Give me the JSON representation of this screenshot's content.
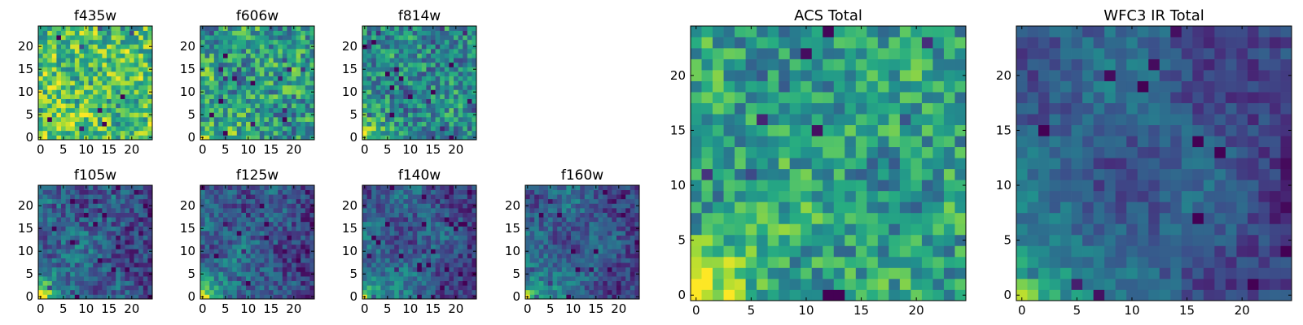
{
  "chart_data": [
    {
      "type": "heatmap",
      "title": "f435w",
      "level": "high",
      "noise": 0.55,
      "glow": 0.35,
      "seed": 11,
      "xticks": [
        "0",
        "5",
        "10",
        "15",
        "20"
      ],
      "yticks": [
        "0",
        "5",
        "10",
        "15",
        "20"
      ],
      "xlim": [
        -0.5,
        24.5
      ],
      "ylim": [
        -0.5,
        24.5
      ],
      "colormap": "viridis"
    },
    {
      "type": "heatmap",
      "title": "f606w",
      "level": "mid-high",
      "noise": 0.55,
      "glow": 0.6,
      "seed": 23,
      "xticks": [
        "0",
        "5",
        "10",
        "15",
        "20"
      ],
      "yticks": [
        "0",
        "5",
        "10",
        "15",
        "20"
      ],
      "xlim": [
        -0.5,
        24.5
      ],
      "ylim": [
        -0.5,
        24.5
      ],
      "colormap": "viridis"
    },
    {
      "type": "heatmap",
      "title": "f814w",
      "level": "mid",
      "noise": 0.5,
      "glow": 0.8,
      "seed": 37,
      "xticks": [
        "0",
        "5",
        "10",
        "15",
        "20"
      ],
      "yticks": [
        "0",
        "5",
        "10",
        "15",
        "20"
      ],
      "xlim": [
        -0.5,
        24.5
      ],
      "ylim": [
        -0.5,
        24.5
      ],
      "colormap": "viridis"
    },
    {
      "type": "heatmap",
      "title": "f105w",
      "level": "low-mid",
      "noise": 0.35,
      "glow": 1.0,
      "seed": 41,
      "xticks": [
        "0",
        "5",
        "10",
        "15",
        "20"
      ],
      "yticks": [
        "0",
        "5",
        "10",
        "15",
        "20"
      ],
      "xlim": [
        -0.5,
        24.5
      ],
      "ylim": [
        -0.5,
        24.5
      ],
      "colormap": "viridis"
    },
    {
      "type": "heatmap",
      "title": "f125w",
      "level": "low-mid",
      "noise": 0.35,
      "glow": 1.0,
      "seed": 53,
      "xticks": [
        "0",
        "5",
        "10",
        "15",
        "20"
      ],
      "yticks": [
        "0",
        "5",
        "10",
        "15",
        "20"
      ],
      "xlim": [
        -0.5,
        24.5
      ],
      "ylim": [
        -0.5,
        24.5
      ],
      "colormap": "viridis"
    },
    {
      "type": "heatmap",
      "title": "f140w",
      "level": "low-mid",
      "noise": 0.3,
      "glow": 1.0,
      "seed": 67,
      "xticks": [
        "0",
        "5",
        "10",
        "15",
        "20"
      ],
      "yticks": [
        "0",
        "5",
        "10",
        "15",
        "20"
      ],
      "xlim": [
        -0.5,
        24.5
      ],
      "ylim": [
        -0.5,
        24.5
      ],
      "colormap": "viridis"
    },
    {
      "type": "heatmap",
      "title": "f160w",
      "level": "low-mid",
      "noise": 0.3,
      "glow": 1.0,
      "seed": 79,
      "xticks": [
        "0",
        "5",
        "10",
        "15",
        "20"
      ],
      "yticks": [
        "0",
        "5",
        "10",
        "15",
        "20"
      ],
      "xlim": [
        -0.5,
        24.5
      ],
      "ylim": [
        -0.5,
        24.5
      ],
      "colormap": "viridis"
    },
    {
      "type": "heatmap",
      "title": "ACS Total",
      "level": "mid-high",
      "noise": 0.45,
      "glow": 0.9,
      "seed": 97,
      "xticks": [
        "0",
        "5",
        "10",
        "15",
        "20"
      ],
      "yticks": [
        "0",
        "5",
        "10",
        "15",
        "20"
      ],
      "xlim": [
        -0.5,
        24.5
      ],
      "ylim": [
        -0.5,
        24.5
      ],
      "colormap": "viridis"
    },
    {
      "type": "heatmap",
      "title": "WFC3 IR Total",
      "level": "low-mid",
      "noise": 0.22,
      "glow": 1.0,
      "seed": 113,
      "xticks": [
        "0",
        "5",
        "10",
        "15",
        "20"
      ],
      "yticks": [
        "0",
        "5",
        "10",
        "15",
        "20"
      ],
      "xlim": [
        -0.5,
        24.5
      ],
      "ylim": [
        -0.5,
        24.5
      ],
      "colormap": "viridis"
    }
  ]
}
